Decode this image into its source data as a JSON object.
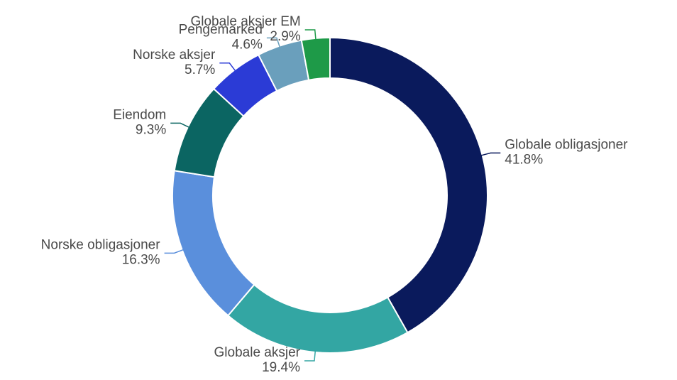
{
  "chart_data": {
    "type": "donut",
    "categories": [
      "Globale obligasjoner",
      "Globale aksjer",
      "Norske obligasjoner",
      "Eiendom",
      "Norske aksjer",
      "Pengemarked",
      "Globale aksjer EM"
    ],
    "values": [
      41.8,
      19.4,
      16.3,
      9.3,
      5.7,
      4.6,
      2.9
    ],
    "value_labels": [
      "41.8%",
      "19.4%",
      "16.3%",
      "9.3%",
      "5.7%",
      "4.6%",
      "2.9%"
    ],
    "colors": [
      "#0a1a5c",
      "#33a6a3",
      "#5a8fdc",
      "#0b6562",
      "#2b3bd6",
      "#6a9fbc",
      "#1e9a48"
    ]
  }
}
